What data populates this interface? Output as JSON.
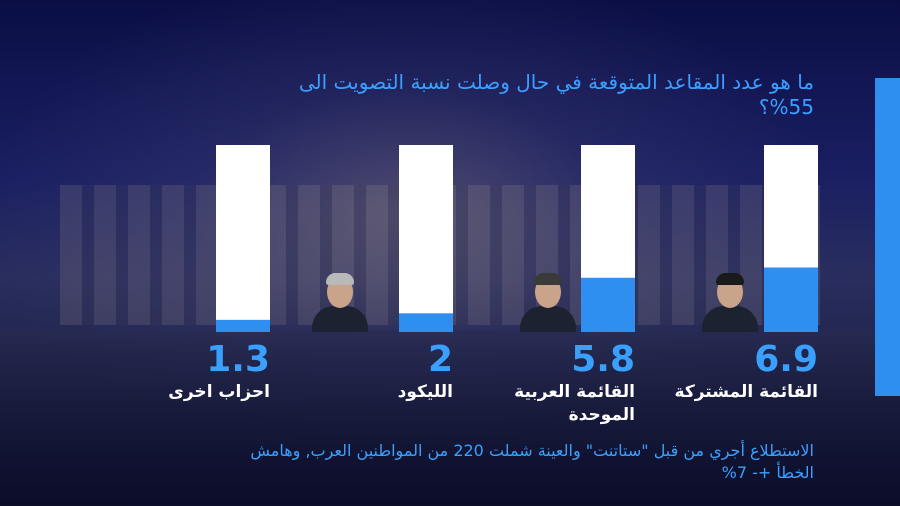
{
  "title": "ما هو عدد المقاعد المتوقعة في حال وصلت نسبة التصويت الى 55%؟",
  "footnote": "الاستطلاع أجري من قبل \"ستاتنت\" والعينة شملت 220 من المواطنين العرب, وهامش الخطأ +- 7%",
  "colors": {
    "accent": "#2e8ff0",
    "bar_track": "#ffffff",
    "text": "#ffffff"
  },
  "chart_data": {
    "type": "bar",
    "categories": [
      "القائمة المشتركة",
      "القائمة العربية الموحدة",
      "الليكود",
      "احزاب اخرى"
    ],
    "values": [
      6.9,
      5.8,
      2,
      1.3
    ],
    "value_labels": [
      "6.9",
      "5.8",
      "2",
      "1.3"
    ],
    "ylim": [
      0,
      20
    ],
    "photos": [
      "portrait-icon",
      "portrait-icon",
      "portrait-icon",
      "none"
    ]
  }
}
